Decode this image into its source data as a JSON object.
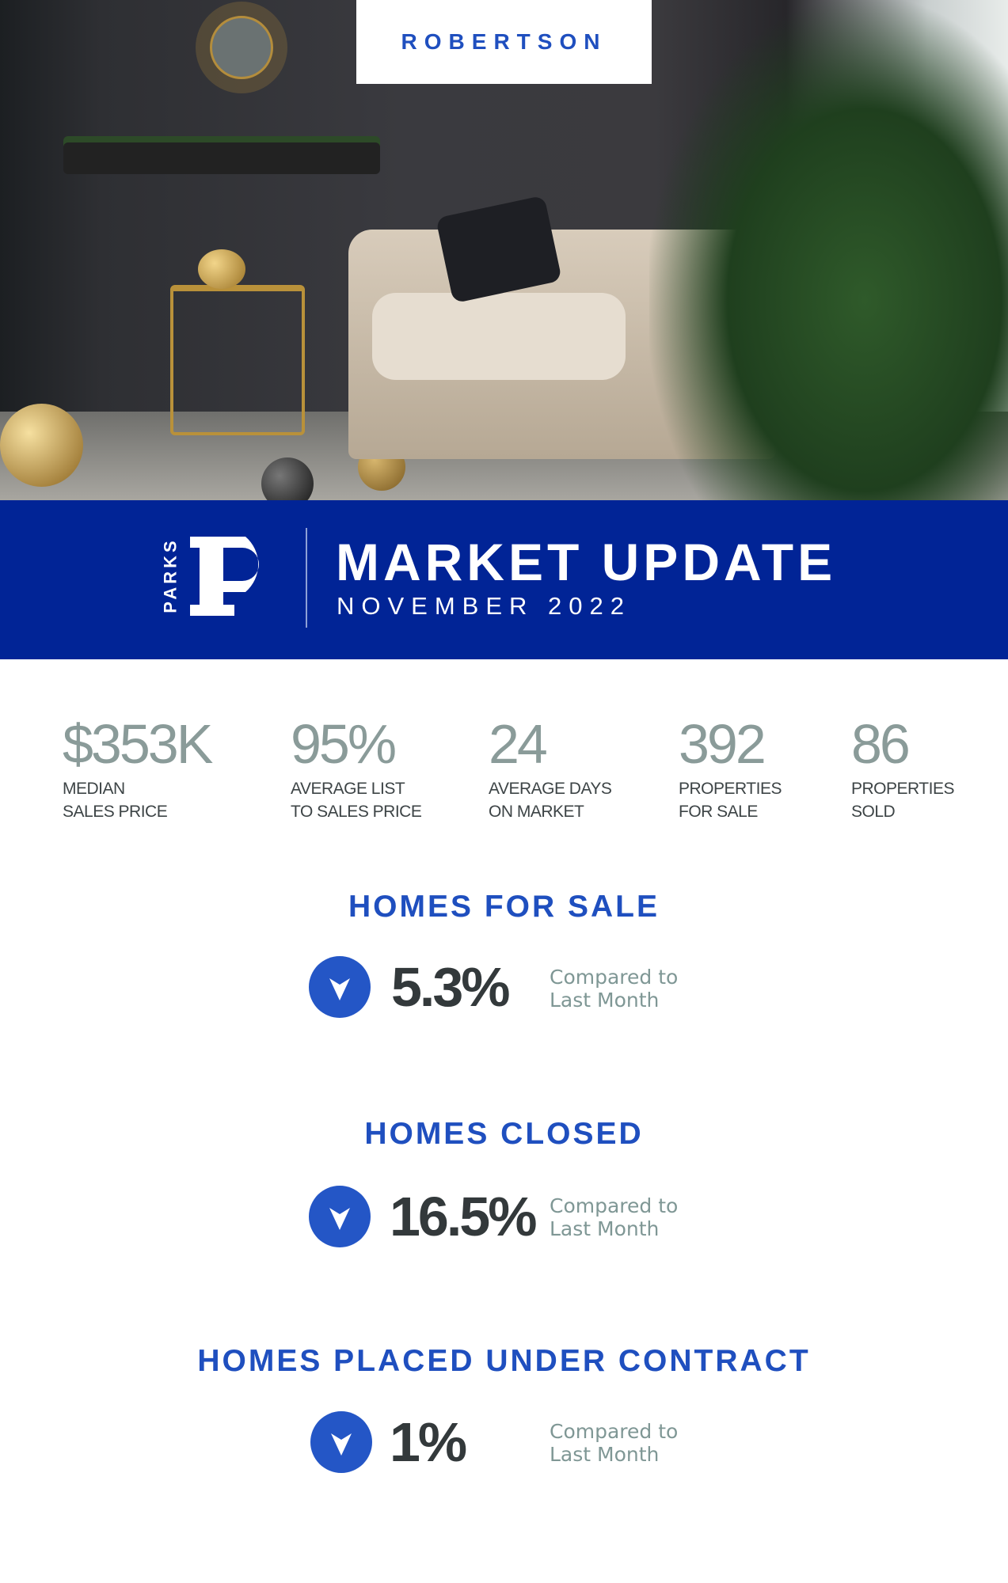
{
  "brand": "ROBERTSON",
  "banner": {
    "logo_text": "PARKS",
    "title": "MARKET UPDATE",
    "subtitle": "NOVEMBER 2022"
  },
  "stats": [
    {
      "value": "$353K",
      "label": "MEDIAN\nSALES PRICE"
    },
    {
      "value": "95%",
      "label": "AVERAGE LIST\nTO SALES PRICE"
    },
    {
      "value": "24",
      "label": "AVERAGE DAYS\nON MARKET"
    },
    {
      "value": "392",
      "label": "PROPERTIES\nFOR SALE"
    },
    {
      "value": "86",
      "label": "PROPERTIES\nSOLD"
    }
  ],
  "sections": [
    {
      "heading": "HOMES FOR SALE",
      "change": "5.3%",
      "direction": "down",
      "compare_line1": "Compared to",
      "compare_line2": "Last Month"
    },
    {
      "heading": "HOMES CLOSED",
      "change": "16.5%",
      "direction": "down",
      "compare_line1": "Compared to",
      "compare_line2": "Last Month"
    },
    {
      "heading": "HOMES PLACED UNDER CONTRACT",
      "change": "1%",
      "direction": "down",
      "compare_line1": "Compared to",
      "compare_line2": "Last Month"
    }
  ],
  "colors": {
    "banner": "#012496",
    "accent": "#2456c6",
    "stat_number": "#8a9b99",
    "text_dark": "#33393b"
  }
}
